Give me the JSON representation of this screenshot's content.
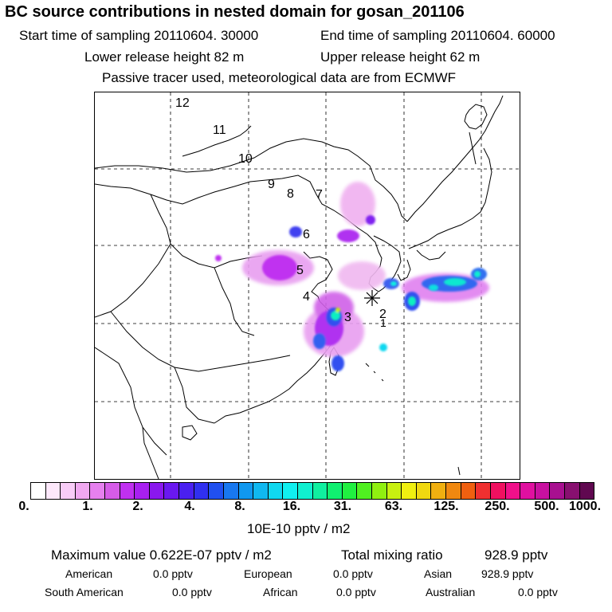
{
  "header": {
    "title": "BC  source contributions in nested domain for gosan_201106",
    "start_label": "Start time of sampling 20110604. 30000",
    "end_label": "End time of sampling 20110604. 60000",
    "lower_label": "Lower release height   82 m",
    "upper_label": "Upper release height   62 m",
    "note": "Passive tracer used, meteorological data are from ECMWF"
  },
  "map": {
    "trajectory_labels": [
      "12",
      "11",
      "10",
      "9",
      "8",
      "7",
      "6",
      "5",
      "4",
      "3",
      "2",
      "1"
    ],
    "receptor_marker": "gosan-receptor-star"
  },
  "colorbar": {
    "tick_labels": [
      "0.",
      "1.",
      "2.",
      "4.",
      "8.",
      "16.",
      "31.",
      "63.",
      "125.",
      "250.",
      "500.",
      "1000."
    ],
    "colors": [
      "#ffffff",
      "#fde8fb",
      "#f8ccf7",
      "#f0a8f0",
      "#e680ef",
      "#d65ce8",
      "#c030f0",
      "#a820f0",
      "#8a18ee",
      "#6a18f0",
      "#4a20f0",
      "#3030f0",
      "#2050f0",
      "#1878f0",
      "#1098f0",
      "#10b8f0",
      "#10d8f0",
      "#10f0f0",
      "#10f0d0",
      "#10f0a0",
      "#10f070",
      "#20f040",
      "#50f020",
      "#90f010",
      "#c8f010",
      "#f0f010",
      "#f0d810",
      "#f0b010",
      "#f08810",
      "#f06010",
      "#f03030",
      "#f01060",
      "#f0108a",
      "#e010a0",
      "#c810a0",
      "#a81090",
      "#881070",
      "#600850"
    ],
    "unit": "10E-10 pptv / m2"
  },
  "summary": {
    "max_label": "Maximum value  0.622E-07 pptv / m2",
    "total_label": "Total mixing ratio",
    "total_value": "928.9 pptv",
    "regions": [
      {
        "name": "American",
        "value": "0.0 pptv"
      },
      {
        "name": "European",
        "value": "0.0 pptv"
      },
      {
        "name": "Asian",
        "value": "928.9 pptv"
      },
      {
        "name": "South American",
        "value": "0.0 pptv"
      },
      {
        "name": "African",
        "value": "0.0 pptv"
      },
      {
        "name": "Australian",
        "value": "0.0 pptv"
      }
    ]
  }
}
